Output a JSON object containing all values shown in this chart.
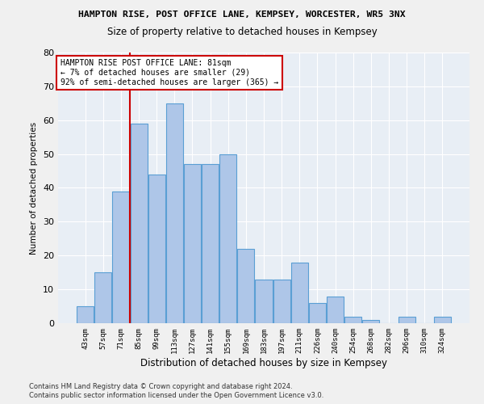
{
  "title1": "HAMPTON RISE, POST OFFICE LANE, KEMPSEY, WORCESTER, WR5 3NX",
  "title2": "Size of property relative to detached houses in Kempsey",
  "xlabel": "Distribution of detached houses by size in Kempsey",
  "ylabel": "Number of detached properties",
  "footer1": "Contains HM Land Registry data © Crown copyright and database right 2024.",
  "footer2": "Contains public sector information licensed under the Open Government Licence v3.0.",
  "annotation_title": "HAMPTON RISE POST OFFICE LANE: 81sqm",
  "annotation_line1": "← 7% of detached houses are smaller (29)",
  "annotation_line2": "92% of semi-detached houses are larger (365) →",
  "bar_values": [
    5,
    15,
    39,
    59,
    44,
    65,
    47,
    47,
    50,
    22,
    13,
    13,
    18,
    6,
    8,
    2,
    1,
    0,
    2,
    0,
    2
  ],
  "categories": [
    "43sqm",
    "57sqm",
    "71sqm",
    "85sqm",
    "99sqm",
    "113sqm",
    "127sqm",
    "141sqm",
    "155sqm",
    "169sqm",
    "183sqm",
    "197sqm",
    "211sqm",
    "226sqm",
    "240sqm",
    "254sqm",
    "268sqm",
    "282sqm",
    "296sqm",
    "310sqm",
    "324sqm"
  ],
  "bar_color": "#aec6e8",
  "bar_edge_color": "#5a9fd4",
  "redline_index": 2.5,
  "ylim": [
    0,
    80
  ],
  "yticks": [
    0,
    10,
    20,
    30,
    40,
    50,
    60,
    70,
    80
  ],
  "bg_color": "#e8eef5",
  "grid_color": "#ffffff",
  "annotation_box_color": "#ffffff",
  "annotation_box_edge": "#cc0000",
  "fig_bg_color": "#f0f0f0"
}
